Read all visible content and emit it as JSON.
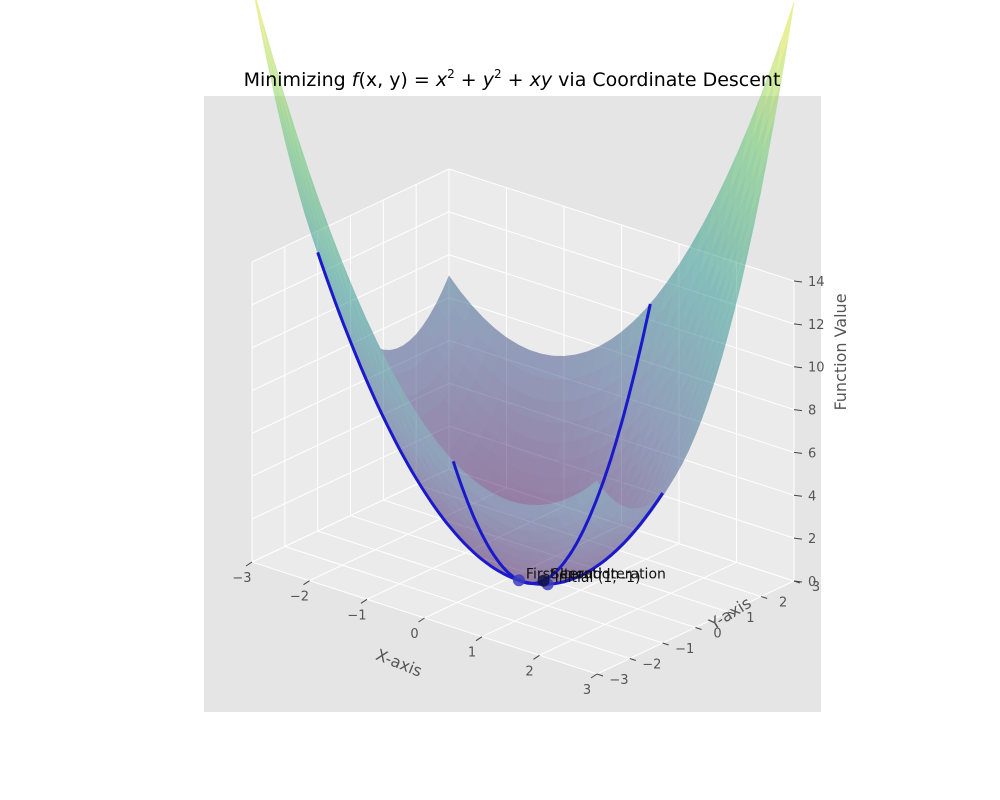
{
  "chart_data": {
    "type": "surface3d",
    "function": "f(x, y) = x^2 + y^2 + xy",
    "title": {
      "prefix": "Minimizing ",
      "math_f": "f",
      "math_args": "(x, y) = ",
      "math_x": "x",
      "sup2": "2",
      "math_y": "y",
      "math_xy": "xy",
      "suffix": " via Coordinate Descent"
    },
    "xlabel": "X-axis",
    "ylabel": "Y-axis",
    "zlabel": "Function Value",
    "xlim": [
      -3,
      3
    ],
    "ylim": [
      -3,
      3
    ],
    "zlim": [
      0,
      14
    ],
    "x_ticks": [
      "−3",
      "−2",
      "−1",
      "0",
      "1",
      "2",
      "3"
    ],
    "y_ticks": [
      "−3",
      "−2",
      "−1",
      "0",
      "1",
      "2",
      "3"
    ],
    "z_ticks": [
      "0",
      "2",
      "4",
      "6",
      "8",
      "10",
      "12",
      "14"
    ],
    "x_tick_values": [
      -3,
      -2,
      -1,
      0,
      1,
      2,
      3
    ],
    "y_tick_values": [
      -3,
      -2,
      -1,
      0,
      1,
      2,
      3
    ],
    "z_tick_values": [
      0,
      2,
      4,
      6,
      8,
      10,
      12,
      14
    ],
    "colormap": [
      "#440154",
      "#3b528b",
      "#21918c",
      "#5ec962",
      "#fde725"
    ],
    "surface_alpha": 0.5,
    "pane_color": "#e5e5e5",
    "grid_color": "#ffffff",
    "descent_path": {
      "color": "#1a1acc",
      "segments": [
        {
          "fixed": "y",
          "value": -1,
          "x_range": [
            -3,
            3
          ]
        },
        {
          "fixed": "x",
          "value": 0.5,
          "y_range": [
            -3,
            3
          ]
        }
      ]
    },
    "points": [
      {
        "label": "Initial (1, -1)",
        "x": 1,
        "y": -1,
        "z": 1,
        "color": "#3d3dbf"
      },
      {
        "label": "First Iteration",
        "x": 0.5,
        "y": -1,
        "z": 0.75,
        "color": "#3d3dbf"
      },
      {
        "label": "Second Iteration",
        "x": 0.5,
        "y": -0.25,
        "z": 0.1875,
        "color": "#111144"
      }
    ]
  }
}
